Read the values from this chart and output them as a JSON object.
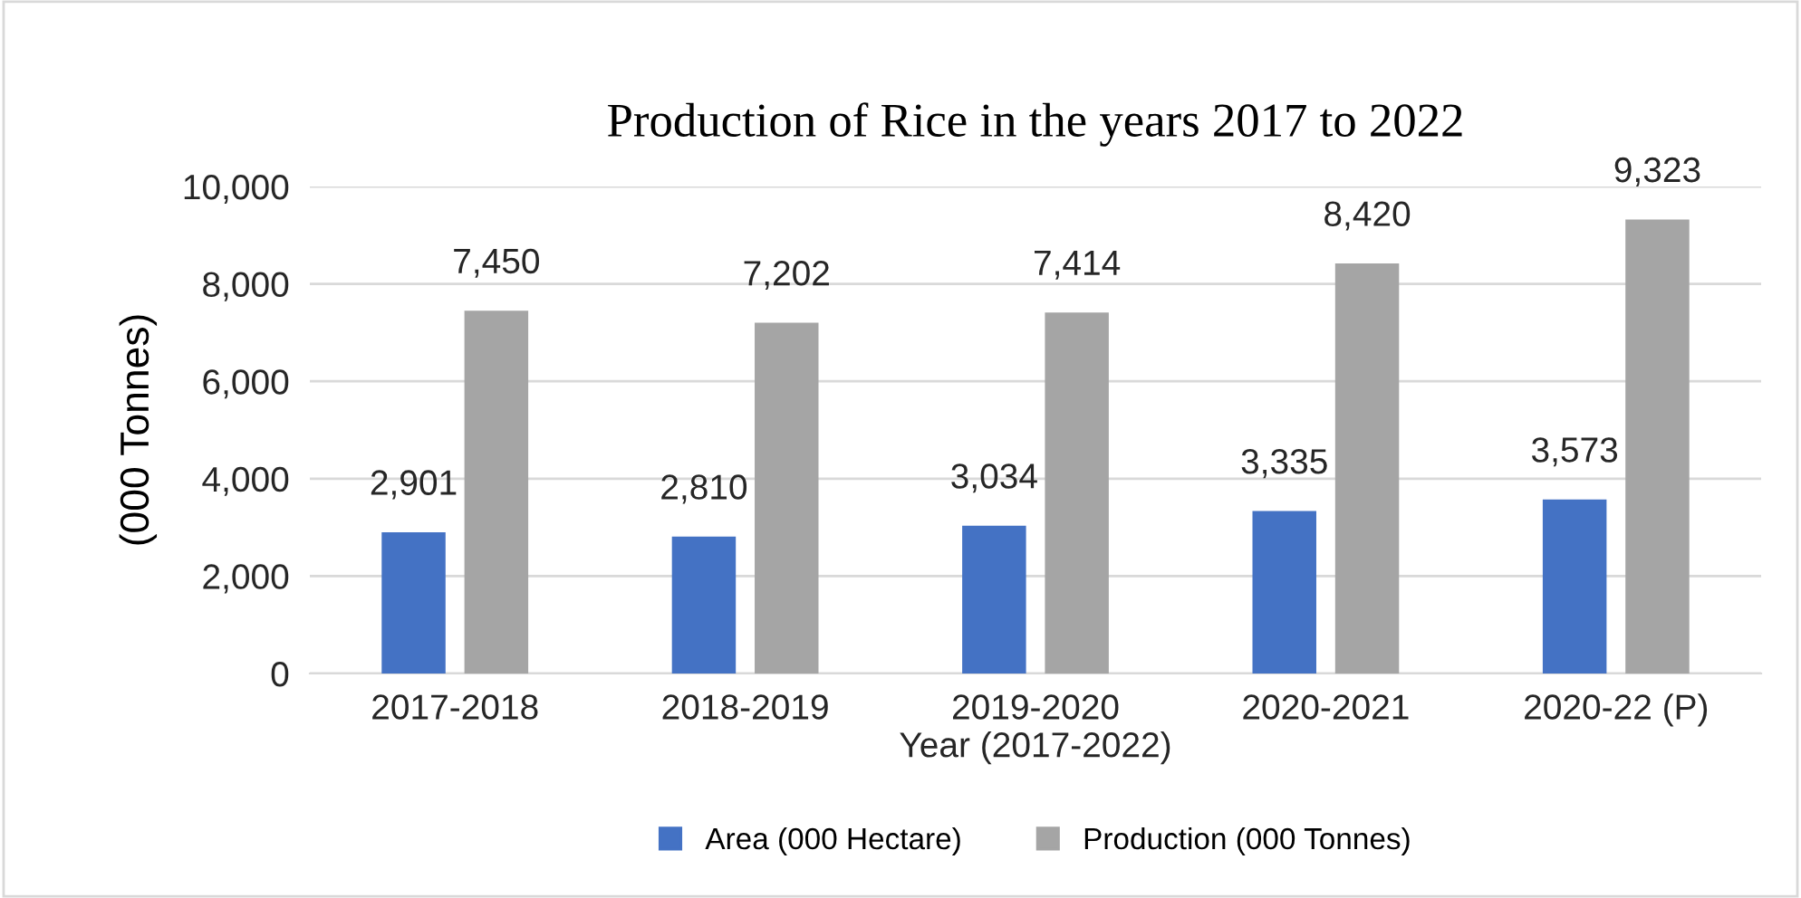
{
  "chart_data": {
    "type": "bar",
    "title": "Production of Rice in the years 2017 to 2022",
    "xlabel": "Year (2017-2022)",
    "ylabel": "(000 Tonnes)",
    "categories": [
      "2017-2018",
      "2018-2019",
      "2019-2020",
      "2020-2021",
      "2020-22 (P)"
    ],
    "series": [
      {
        "name": "Area (000 Hectare)",
        "color": "#4472c4",
        "values": [
          2901,
          2810,
          3034,
          3335,
          3573
        ],
        "value_labels": [
          "2,901",
          "2,810",
          "3,034",
          "3,335",
          "3,573"
        ]
      },
      {
        "name": "Production (000 Tonnes)",
        "color": "#a5a5a5",
        "values": [
          7450,
          7202,
          7414,
          8420,
          9323
        ],
        "value_labels": [
          "7,450",
          "7,202",
          "7,414",
          "8,420",
          "9,323"
        ]
      }
    ],
    "ylim": [
      0,
      10000
    ],
    "yticks": [
      {
        "value": 0,
        "label": "0"
      },
      {
        "value": 2000,
        "label": "2,000"
      },
      {
        "value": 4000,
        "label": "4,000"
      },
      {
        "value": 6000,
        "label": "6,000"
      },
      {
        "value": 8000,
        "label": "8,000"
      },
      {
        "value": 10000,
        "label": "10,000"
      }
    ],
    "grid": "y",
    "legend": "bottom"
  }
}
